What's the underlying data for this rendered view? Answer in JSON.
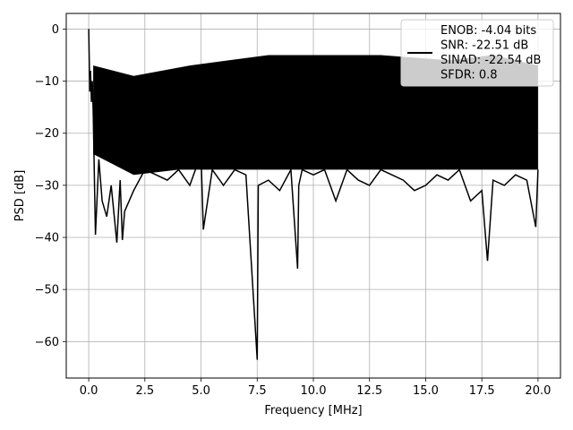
{
  "chart_data": {
    "type": "line",
    "title": "",
    "xlabel": "Frequency [MHz]",
    "ylabel": "PSD [dB]",
    "xlim": [
      -1.0,
      21.0
    ],
    "ylim": [
      -67.0,
      3.0
    ],
    "x_ticks": [
      0.0,
      2.5,
      5.0,
      7.5,
      10.0,
      12.5,
      15.0,
      17.5,
      20.0
    ],
    "x_tick_labels": [
      "0.0",
      "2.5",
      "5.0",
      "7.5",
      "10.0",
      "12.5",
      "15.0",
      "17.5",
      "20.0"
    ],
    "y_ticks": [
      0,
      -10,
      -20,
      -30,
      -40,
      -50,
      -60
    ],
    "y_tick_labels": [
      "0",
      "−10",
      "−20",
      "−30",
      "−40",
      "−50",
      "−60"
    ],
    "grid": true,
    "legend_position": "top-right",
    "legend": [
      "ENOB: -4.04 bits",
      "SNR: -22.51 dB",
      "SINAD: -22.54 dB",
      "SFDR: 0.8"
    ],
    "series": [
      {
        "color": "#000000",
        "x": [
          0.0,
          0.02,
          0.05,
          0.08,
          0.12,
          0.16,
          0.2,
          0.3,
          0.45,
          0.6,
          0.8,
          1.0,
          1.25,
          1.4,
          1.5,
          1.6,
          2.0,
          2.5,
          3.0,
          3.5,
          4.0,
          4.5,
          5.0,
          5.1,
          5.5,
          6.0,
          6.5,
          7.0,
          7.5,
          7.55,
          8.0,
          8.5,
          9.0,
          9.3,
          9.35,
          9.5,
          10.0,
          10.5,
          11.0,
          11.5,
          12.0,
          12.5,
          13.0,
          13.5,
          14.0,
          14.5,
          15.0,
          15.5,
          16.0,
          16.5,
          17.0,
          17.5,
          17.75,
          18.0,
          18.5,
          19.0,
          19.5,
          19.9,
          20.0
        ],
        "y": [
          0.0,
          -5.0,
          -12.0,
          -8.0,
          -14.0,
          -10.0,
          -16.0,
          -39.5,
          -25.0,
          -33.0,
          -36.0,
          -30.0,
          -41.0,
          -29.0,
          -40.5,
          -35.0,
          -31.0,
          -27.0,
          -28.0,
          -29.0,
          -27.0,
          -30.0,
          -24.0,
          -38.5,
          -27.0,
          -30.0,
          -27.0,
          -28.0,
          -63.5,
          -30.0,
          -29.0,
          -31.0,
          -27.0,
          -46.0,
          -30.0,
          -27.0,
          -28.0,
          -27.0,
          -33.0,
          -27.0,
          -29.0,
          -30.0,
          -27.0,
          -28.0,
          -29.0,
          -31.0,
          -30.0,
          -28.0,
          -29.0,
          -27.0,
          -33.0,
          -31.0,
          -44.5,
          -29.0,
          -30.0,
          -28.0,
          -29.0,
          -38.0,
          -27.0
        ]
      }
    ]
  }
}
